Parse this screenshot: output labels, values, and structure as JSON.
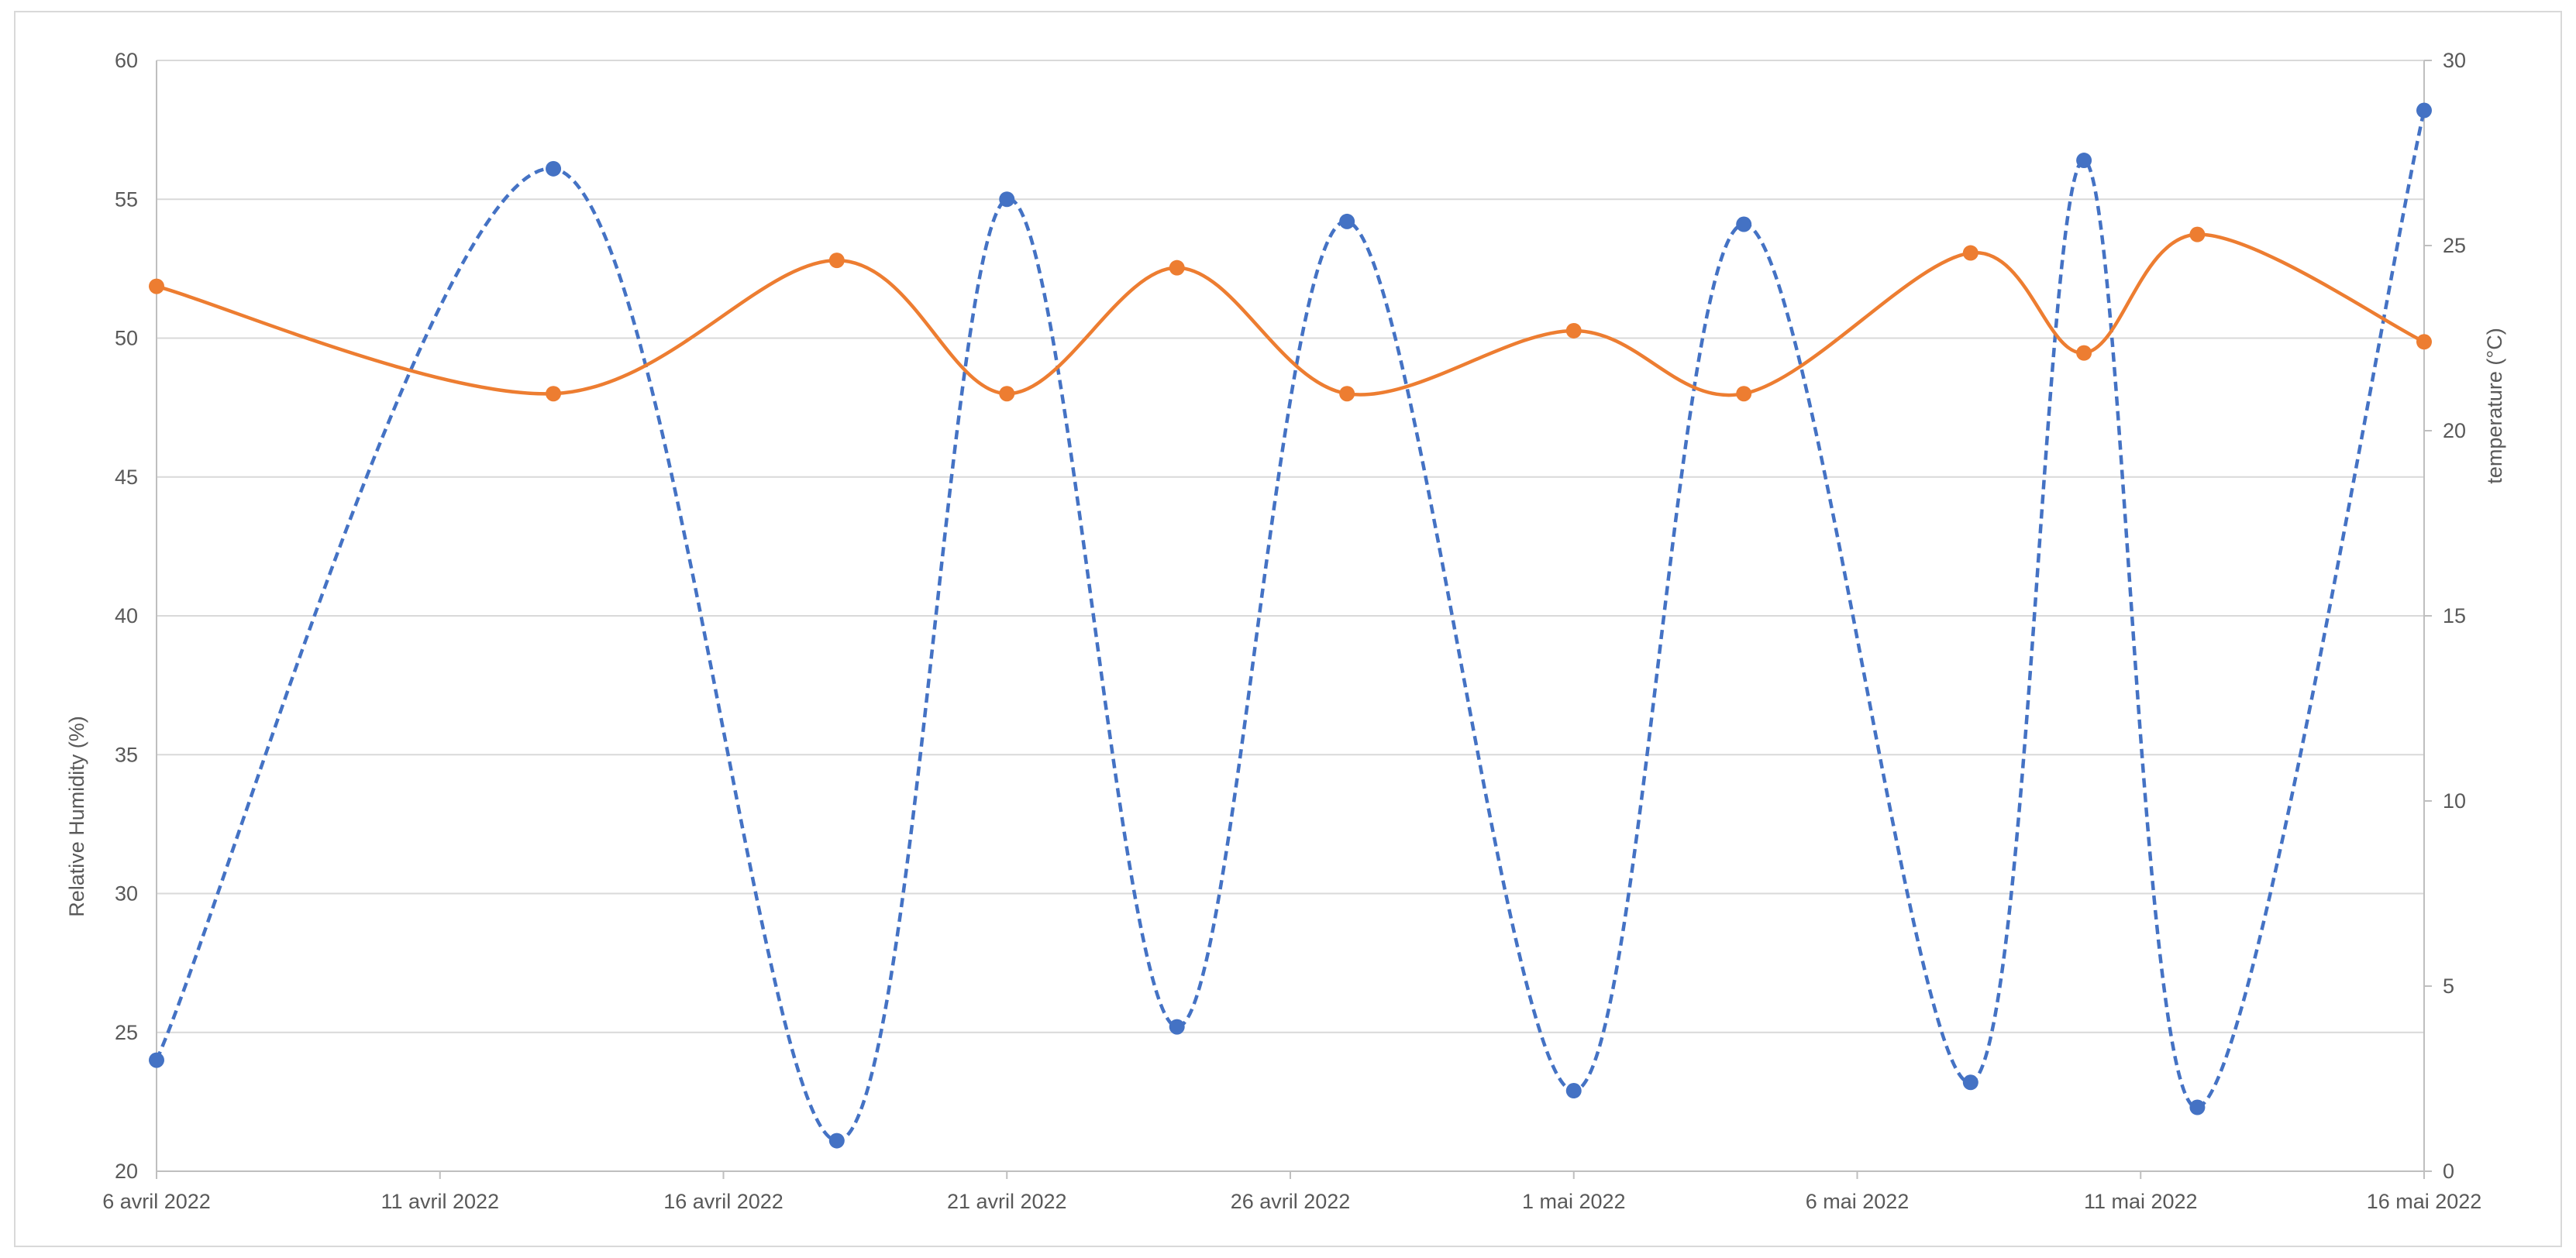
{
  "chart_data": {
    "type": "line",
    "title": "",
    "xlabel": "",
    "ylabel": "Relative Humidity (%)",
    "y2label": "temperature (°C)",
    "ylim": [
      20,
      60
    ],
    "y2lim": [
      0,
      30
    ],
    "yticks": [
      "20",
      "25",
      "30",
      "35",
      "40",
      "45",
      "50",
      "55",
      "60"
    ],
    "y2ticks": [
      "0",
      "5",
      "10",
      "15",
      "20",
      "25",
      "30"
    ],
    "xticks": [
      "6 avril 2022",
      "11 avril 2022",
      "16 avril 2022",
      "21 avril 2022",
      "26 avril 2022",
      "1 mai 2022",
      "6 mai 2022",
      "11 mai 2022",
      "16 mai 2022"
    ],
    "xlim": [
      "2022-04-06",
      "2022-05-16"
    ],
    "grid": "horizontal",
    "legend": "none",
    "series": [
      {
        "axis": "left",
        "style": "dashed",
        "color": "#4472c4",
        "points": [
          {
            "x": "2022-04-06",
            "y": 24.0
          },
          {
            "x": "2022-04-13",
            "y": 56.1
          },
          {
            "x": "2022-04-18",
            "y": 21.1
          },
          {
            "x": "2022-04-21",
            "y": 55.0
          },
          {
            "x": "2022-04-24",
            "y": 25.2
          },
          {
            "x": "2022-04-27",
            "y": 54.2
          },
          {
            "x": "2022-05-01",
            "y": 22.9
          },
          {
            "x": "2022-05-04",
            "y": 54.1
          },
          {
            "x": "2022-05-08",
            "y": 23.2
          },
          {
            "x": "2022-05-10",
            "y": 56.4
          },
          {
            "x": "2022-05-12",
            "y": 22.3
          },
          {
            "x": "2022-05-16",
            "y": 58.2
          }
        ]
      },
      {
        "axis": "right",
        "style": "solid",
        "color": "#ed7d31",
        "points": [
          {
            "x": "2022-04-06",
            "y": 23.9
          },
          {
            "x": "2022-04-13",
            "y": 21.0
          },
          {
            "x": "2022-04-18",
            "y": 24.6
          },
          {
            "x": "2022-04-21",
            "y": 21.0
          },
          {
            "x": "2022-04-24",
            "y": 24.4
          },
          {
            "x": "2022-04-27",
            "y": 21.0
          },
          {
            "x": "2022-05-01",
            "y": 22.7
          },
          {
            "x": "2022-05-04",
            "y": 21.0
          },
          {
            "x": "2022-05-08",
            "y": 24.8
          },
          {
            "x": "2022-05-10",
            "y": 22.1
          },
          {
            "x": "2022-05-12",
            "y": 25.3
          },
          {
            "x": "2022-05-16",
            "y": 22.4
          }
        ]
      }
    ]
  }
}
